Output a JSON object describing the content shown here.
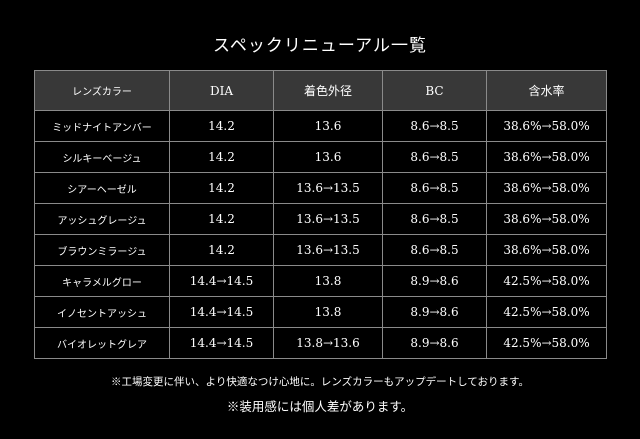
{
  "title": "スペックリニューアル一覧",
  "table": {
    "headers": [
      "レンズカラー",
      "DIA",
      "着色外径",
      "BC",
      "含水率"
    ],
    "rows": [
      [
        "ミッドナイトアンバー",
        "14.2",
        "13.6",
        "8.6→8.5",
        "38.6%→58.0%"
      ],
      [
        "シルキーベージュ",
        "14.2",
        "13.6",
        "8.6→8.5",
        "38.6%→58.0%"
      ],
      [
        "シアーヘーゼル",
        "14.2",
        "13.6→13.5",
        "8.6→8.5",
        "38.6%→58.0%"
      ],
      [
        "アッシュグレージュ",
        "14.2",
        "13.6→13.5",
        "8.6→8.5",
        "38.6%→58.0%"
      ],
      [
        "ブラウンミラージュ",
        "14.2",
        "13.6→13.5",
        "8.6→8.5",
        "38.6%→58.0%"
      ],
      [
        "キャラメルグロー",
        "14.4→14.5",
        "13.8",
        "8.9→8.6",
        "42.5%→58.0%"
      ],
      [
        "イノセントアッシュ",
        "14.4→14.5",
        "13.8",
        "8.9→8.6",
        "42.5%→58.0%"
      ],
      [
        "バイオレットグレア",
        "14.4→14.5",
        "13.8→13.6",
        "8.9→8.6",
        "42.5%→58.0%"
      ]
    ]
  },
  "notes": {
    "line1": "※工場変更に伴い、より快適なつけ心地に。レンズカラーもアップデートしております。",
    "line2": "※装用感には個人差があります。"
  },
  "colors": {
    "background": "#000000",
    "header_bg": "#383838",
    "border": "#8a8a8a",
    "text": "#ffffff"
  }
}
